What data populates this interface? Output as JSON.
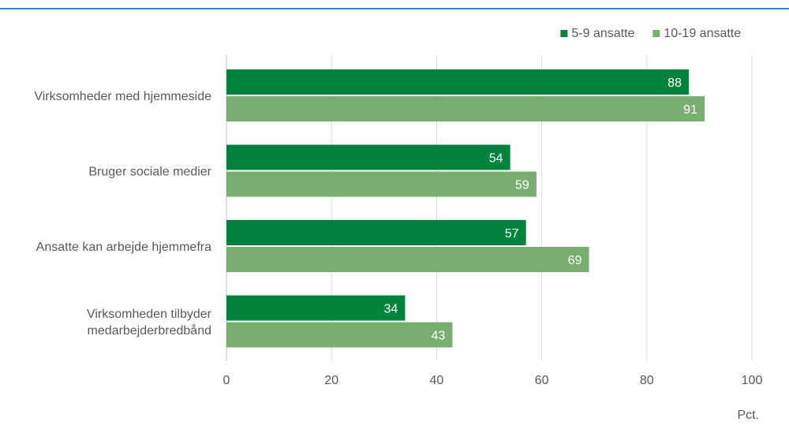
{
  "chart_data": {
    "type": "bar",
    "orientation": "horizontal",
    "categories": [
      "Virksomheder med hjemmeside",
      "Bruger sociale medier",
      "Ansatte kan arbejde hjemmefra",
      "Virksomheden tilbyder medarbejderbredbånd"
    ],
    "category_lines": [
      [
        "Virksomheder med hjemmeside"
      ],
      [
        "Bruger sociale medier"
      ],
      [
        "Ansatte kan arbejde hjemmefra"
      ],
      [
        "Virksomheden tilbyder",
        "medarbejderbredbånd"
      ]
    ],
    "series": [
      {
        "name": "5-9 ansatte",
        "values": [
          88,
          54,
          57,
          34
        ],
        "color": "#00843d"
      },
      {
        "name": "10-19 ansatte",
        "values": [
          91,
          59,
          69,
          43
        ],
        "color": "#79ae71"
      }
    ],
    "xlim": [
      0,
      100
    ],
    "xticks": [
      "0",
      "20",
      "40",
      "60",
      "80",
      "100"
    ],
    "unit": "Pct.",
    "grid": true,
    "legend_position": "top-right",
    "accent_rule_color": "#1a8fd0"
  }
}
